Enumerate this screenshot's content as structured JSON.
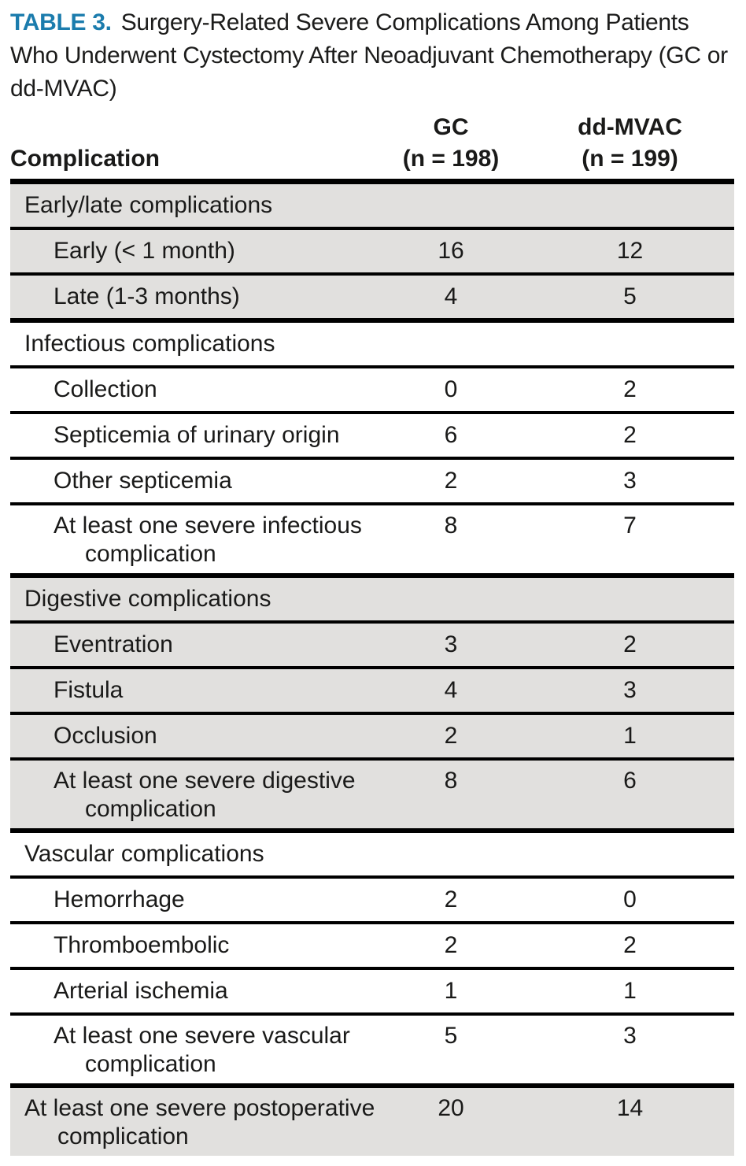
{
  "title": {
    "label": "TABLE 3.",
    "text": "Surgery-Related Severe Complications Among Patients Who Underwent Cystectomy After Neoadjuvant Chemotherapy (GC or dd-MVAC)"
  },
  "header": {
    "complication": "Complication",
    "gc_name": "GC",
    "gc_n": "(n = 198)",
    "mvac_name": "dd-MVAC",
    "mvac_n": "(n = 199)"
  },
  "colors": {
    "accent_blue": "#1b7cad",
    "shaded_row": "#e1e0de",
    "rule": "#000000",
    "text": "#1a1a19"
  },
  "sections": [
    {
      "name": "Early/late complications",
      "shaded": true,
      "rows": [
        {
          "label": "Early (< 1 month)",
          "gc": "16",
          "mvac": "12"
        },
        {
          "label": "Late (1-3 months)",
          "gc": "4",
          "mvac": "5"
        }
      ]
    },
    {
      "name": "Infectious complications",
      "shaded": false,
      "rows": [
        {
          "label": "Collection",
          "gc": "0",
          "mvac": "2"
        },
        {
          "label": "Septicemia of urinary origin",
          "gc": "6",
          "mvac": "2"
        },
        {
          "label": "Other septicemia",
          "gc": "2",
          "mvac": "3"
        },
        {
          "label": "At least one severe infectious complication",
          "gc": "8",
          "mvac": "7"
        }
      ]
    },
    {
      "name": "Digestive complications",
      "shaded": true,
      "rows": [
        {
          "label": "Eventration",
          "gc": "3",
          "mvac": "2"
        },
        {
          "label": "Fistula",
          "gc": "4",
          "mvac": "3"
        },
        {
          "label": "Occlusion",
          "gc": "2",
          "mvac": "1"
        },
        {
          "label": "At least one severe digestive complication",
          "gc": "8",
          "mvac": "6"
        }
      ]
    },
    {
      "name": "Vascular complications",
      "shaded": false,
      "rows": [
        {
          "label": "Hemorrhage",
          "gc": "2",
          "mvac": "0"
        },
        {
          "label": "Thromboembolic",
          "gc": "2",
          "mvac": "2"
        },
        {
          "label": "Arterial ischemia",
          "gc": "1",
          "mvac": "1"
        },
        {
          "label": "At least one severe vascular complication",
          "gc": "5",
          "mvac": "3"
        }
      ]
    }
  ],
  "total_row": {
    "label": "At least one severe postoperative complication",
    "gc": "20",
    "mvac": "14"
  }
}
